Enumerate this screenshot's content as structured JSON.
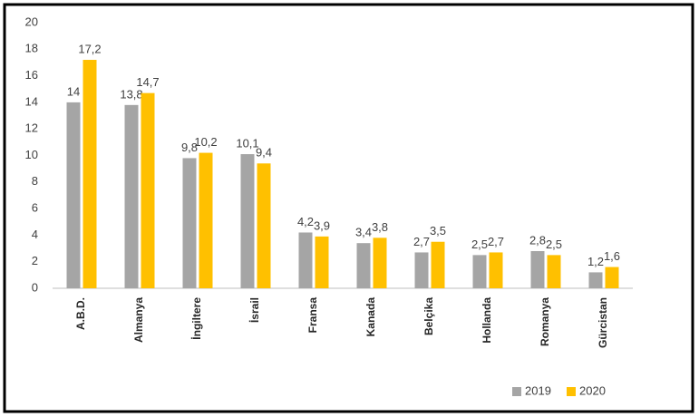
{
  "chart_data": {
    "type": "bar",
    "categories": [
      "A.B.D.",
      "Almanya",
      "İngiltere",
      "İsrail",
      "Fransa",
      "Kanada",
      "Belçika",
      "Hollanda",
      "Romanya",
      "Gürcistan"
    ],
    "series": [
      {
        "name": "2019",
        "color": "#a5a5a5",
        "values": [
          14,
          13.8,
          9.8,
          10.1,
          4.2,
          3.4,
          2.7,
          2.5,
          2.8,
          1.2
        ],
        "value_labels": [
          "14",
          "13,8",
          "9,8",
          "10,1",
          "4,2",
          "3,4",
          "2,7",
          "2,5",
          "2,8",
          "1,2"
        ]
      },
      {
        "name": "2020",
        "color": "#ffc000",
        "values": [
          17.2,
          14.7,
          10.2,
          9.4,
          3.9,
          3.8,
          3.5,
          2.7,
          2.5,
          1.6
        ],
        "value_labels": [
          "17,2",
          "14,7",
          "10,2",
          "9,4",
          "3,9",
          "3,8",
          "3,5",
          "2,7",
          "2,5",
          "1,6"
        ]
      }
    ],
    "ylim": [
      0,
      20
    ],
    "yticks": [
      0,
      2,
      4,
      6,
      8,
      10,
      12,
      14,
      16,
      18,
      20
    ],
    "grid": false,
    "legend": "bottom-right"
  }
}
